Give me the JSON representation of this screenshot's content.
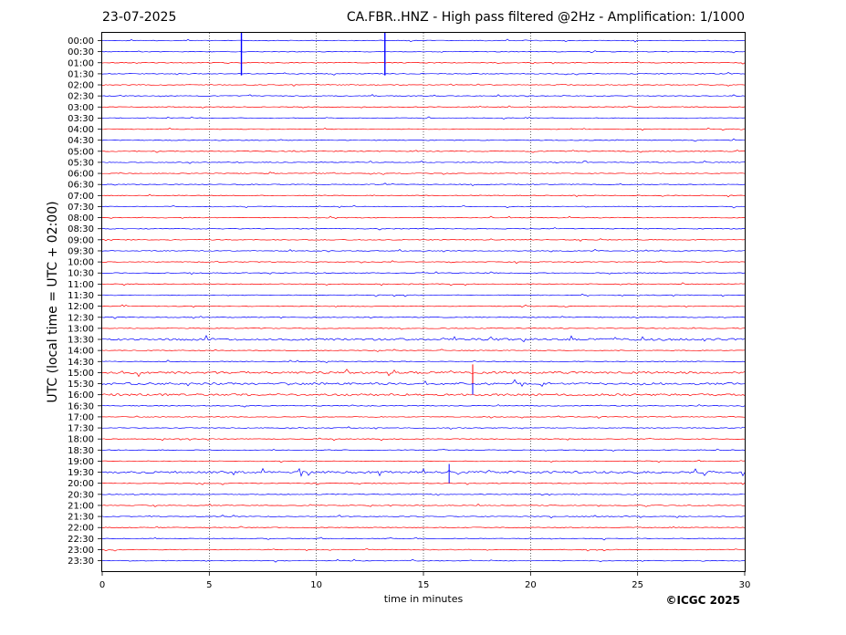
{
  "header": {
    "date": "23-07-2025",
    "title": "CA.FBR..HNZ - High pass filtered @2Hz - Amplification: 1/1000"
  },
  "footer": {
    "copyright": "©ICGC 2025"
  },
  "colors": {
    "odd_trace": "#0000ff",
    "even_trace": "#ff0000",
    "frame": "#000000",
    "grid": "#000000"
  },
  "chart_data": {
    "type": "line",
    "title": "CA.FBR..HNZ - High pass filtered @2Hz - Amplification: 1/1000",
    "subtitle": "23-07-2025",
    "xlabel": "time in minutes",
    "ylabel": "UTC (local time = UTC + 02:00)",
    "xlim": [
      0,
      30
    ],
    "xticks": [
      "0",
      "5",
      "10",
      "15",
      "20",
      "25",
      "30"
    ],
    "vertical_gridlines_at": [
      5,
      10,
      15,
      20,
      25
    ],
    "rows": [
      "00:00",
      "00:30",
      "01:00",
      "01:30",
      "02:00",
      "02:30",
      "03:00",
      "03:30",
      "04:00",
      "04:30",
      "05:00",
      "05:30",
      "06:00",
      "06:30",
      "07:00",
      "07:30",
      "08:00",
      "08:30",
      "09:00",
      "09:30",
      "10:00",
      "10:30",
      "11:00",
      "11:30",
      "12:00",
      "12:30",
      "13:00",
      "13:30",
      "14:00",
      "14:30",
      "15:00",
      "15:30",
      "16:00",
      "16:30",
      "17:00",
      "17:30",
      "18:00",
      "18:30",
      "19:00",
      "19:30",
      "20:00",
      "20:30",
      "21:00",
      "21:30",
      "22:00",
      "22:30",
      "23:00",
      "23:30"
    ],
    "row_colors": [
      "blue",
      "blue",
      "red",
      "blue",
      "red",
      "blue",
      "red",
      "blue",
      "red",
      "blue",
      "red",
      "blue",
      "red",
      "blue",
      "red",
      "blue",
      "red",
      "blue",
      "red",
      "blue",
      "red",
      "blue",
      "red",
      "blue",
      "red",
      "blue",
      "red",
      "blue",
      "red",
      "blue",
      "red",
      "blue",
      "red",
      "blue",
      "red",
      "blue",
      "red",
      "blue",
      "red",
      "blue",
      "red",
      "blue",
      "red",
      "blue",
      "red",
      "blue",
      "red",
      "blue"
    ],
    "events": [
      {
        "row": "00:30",
        "minute": 6.5,
        "amplitude": "large"
      },
      {
        "row": "00:30",
        "minute": 13.2,
        "amplitude": "large"
      },
      {
        "row": "15:30",
        "minute": 17.3,
        "amplitude": "medium"
      },
      {
        "row": "19:30",
        "minute": 16.2,
        "amplitude": "medium"
      },
      {
        "row": "15:00",
        "minute": 17.3,
        "amplitude": "medium"
      }
    ],
    "trace_activity_note_rows": [
      "13:30",
      "15:00",
      "15:30",
      "16:00",
      "19:30"
    ],
    "grid": true
  }
}
